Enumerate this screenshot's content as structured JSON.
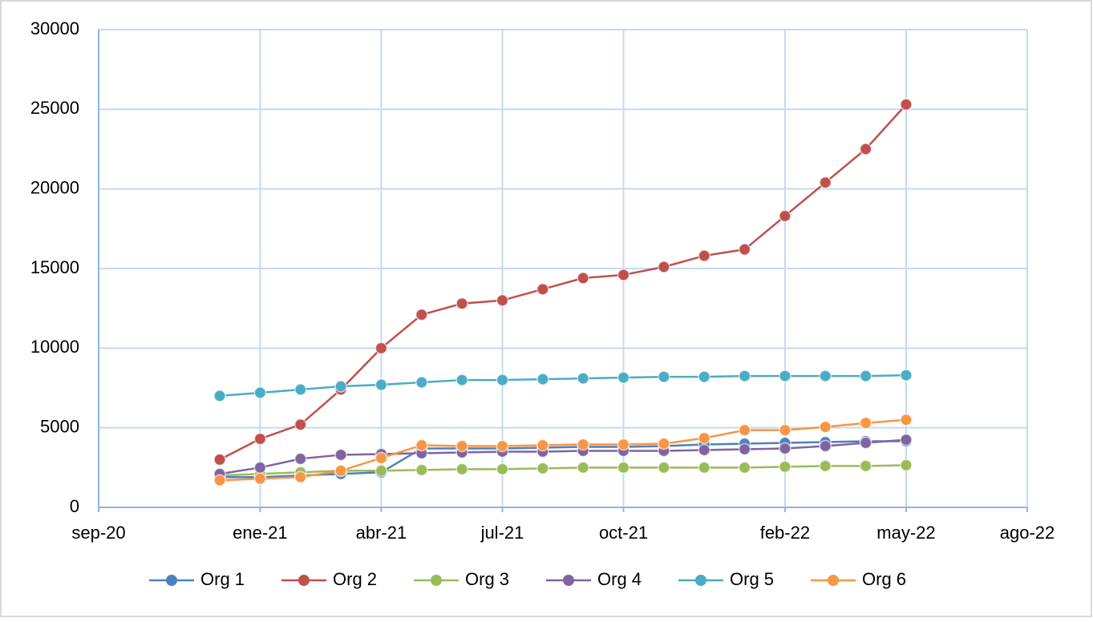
{
  "chart_data": {
    "type": "line",
    "x": [
      "2020-12",
      "2021-01",
      "2021-02",
      "2021-03",
      "2021-04",
      "2021-05",
      "2021-06",
      "2021-07",
      "2021-08",
      "2021-09",
      "2021-10",
      "2021-11",
      "2021-12",
      "2022-01",
      "2022-02",
      "2022-03",
      "2022-04",
      "2022-05"
    ],
    "series": [
      {
        "name": "Org 1",
        "color": "#4f81bd",
        "values": [
          1900,
          1900,
          2000,
          2100,
          2200,
          3700,
          3700,
          3700,
          3750,
          3800,
          3800,
          3850,
          3950,
          4000,
          4050,
          4100,
          4150,
          4150
        ]
      },
      {
        "name": "Org 2",
        "color": "#c0504d",
        "values": [
          3000,
          4300,
          5200,
          7400,
          10000,
          12100,
          12800,
          13000,
          13700,
          14400,
          14600,
          15100,
          15800,
          16200,
          18300,
          20400,
          22500,
          25300
        ]
      },
      {
        "name": "Org 3",
        "color": "#9bbb59",
        "values": [
          2000,
          2100,
          2200,
          2300,
          2300,
          2350,
          2400,
          2400,
          2450,
          2500,
          2500,
          2500,
          2500,
          2500,
          2550,
          2600,
          2600,
          2650
        ]
      },
      {
        "name": "Org 4",
        "color": "#8064a2",
        "values": [
          2100,
          2500,
          3050,
          3300,
          3350,
          3400,
          3450,
          3500,
          3500,
          3550,
          3550,
          3550,
          3600,
          3650,
          3700,
          3850,
          4050,
          4250
        ]
      },
      {
        "name": "Org 5",
        "color": "#4bacc6",
        "values": [
          7000,
          7200,
          7400,
          7600,
          7700,
          7850,
          8000,
          8000,
          8050,
          8100,
          8150,
          8200,
          8200,
          8250,
          8250,
          8250,
          8250,
          8300
        ]
      },
      {
        "name": "Org 6",
        "color": "#f79646",
        "values": [
          1700,
          1800,
          1900,
          2300,
          3100,
          3900,
          3850,
          3850,
          3900,
          3950,
          3950,
          4000,
          4350,
          4850,
          4850,
          5050,
          5300,
          5500
        ]
      }
    ],
    "xlim": [
      "2020-09",
      "2022-08"
    ],
    "xticks": [
      {
        "value": "2020-09",
        "label": "sep-20"
      },
      {
        "value": "2021-01",
        "label": "ene-21"
      },
      {
        "value": "2021-04",
        "label": "abr-21"
      },
      {
        "value": "2021-07",
        "label": "jul-21"
      },
      {
        "value": "2021-10",
        "label": "oct-21"
      },
      {
        "value": "2022-02",
        "label": "feb-22"
      },
      {
        "value": "2022-05",
        "label": "may-22"
      },
      {
        "value": "2022-08",
        "label": "ago-22"
      }
    ],
    "ylim": [
      0,
      30000
    ],
    "yticks": [
      0,
      5000,
      10000,
      15000,
      20000,
      25000,
      30000
    ],
    "grid": true,
    "legend": "bottom"
  }
}
